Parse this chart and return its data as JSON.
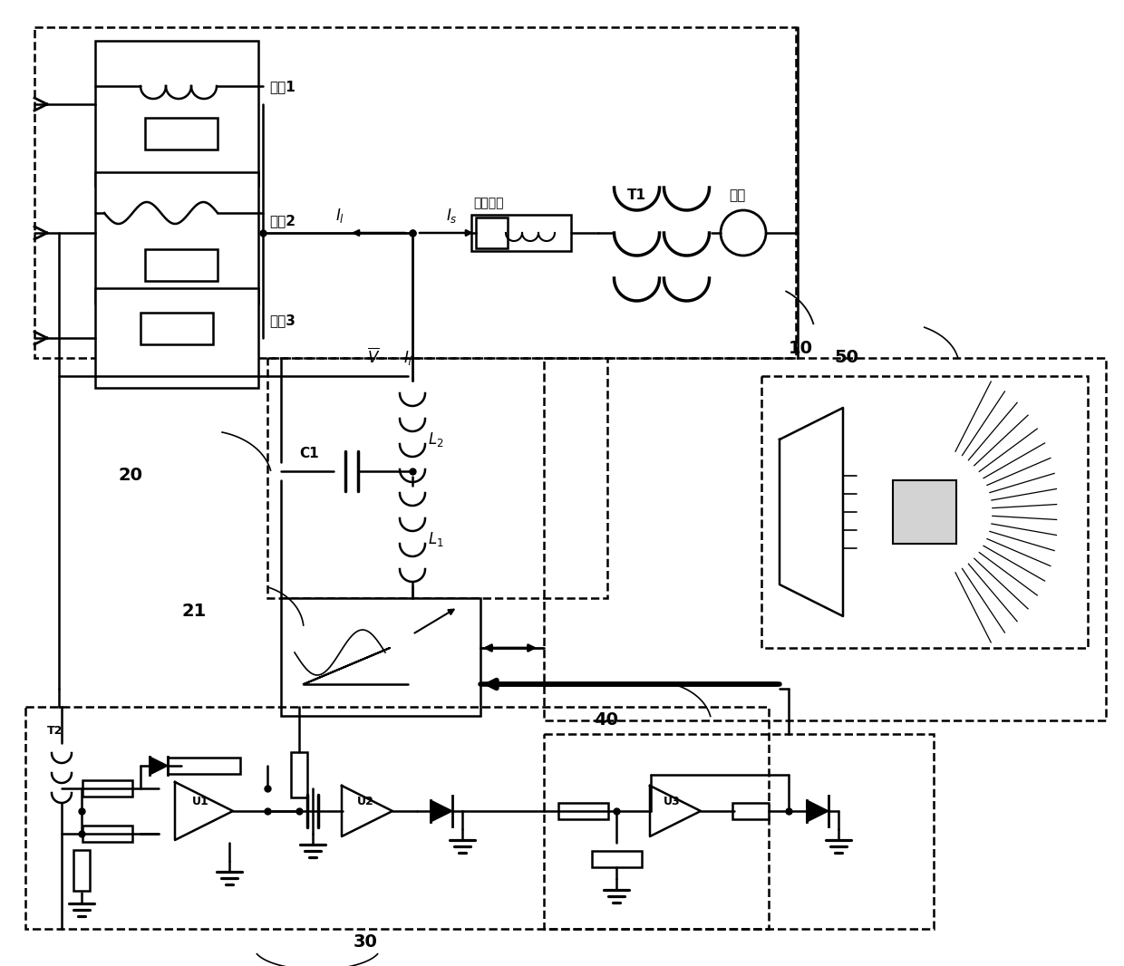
{
  "bg_color": "#ffffff",
  "lc": "#000000",
  "label_10": "10",
  "label_20": "20",
  "label_21": "21",
  "label_30": "30",
  "label_40": "40",
  "label_50": "50",
  "label_fz1": "负载1",
  "label_fz2": "负载2",
  "label_fz3": "负载3",
  "label_dzz": "等效阻抗",
  "label_T1": "T1",
  "label_dw": "电网",
  "label_T2": "T2",
  "label_U1": "U1",
  "label_U2": "U2",
  "label_U3": "U3",
  "label_C1": "C1",
  "figsize": [
    12.4,
    10.66
  ],
  "dpi": 100
}
